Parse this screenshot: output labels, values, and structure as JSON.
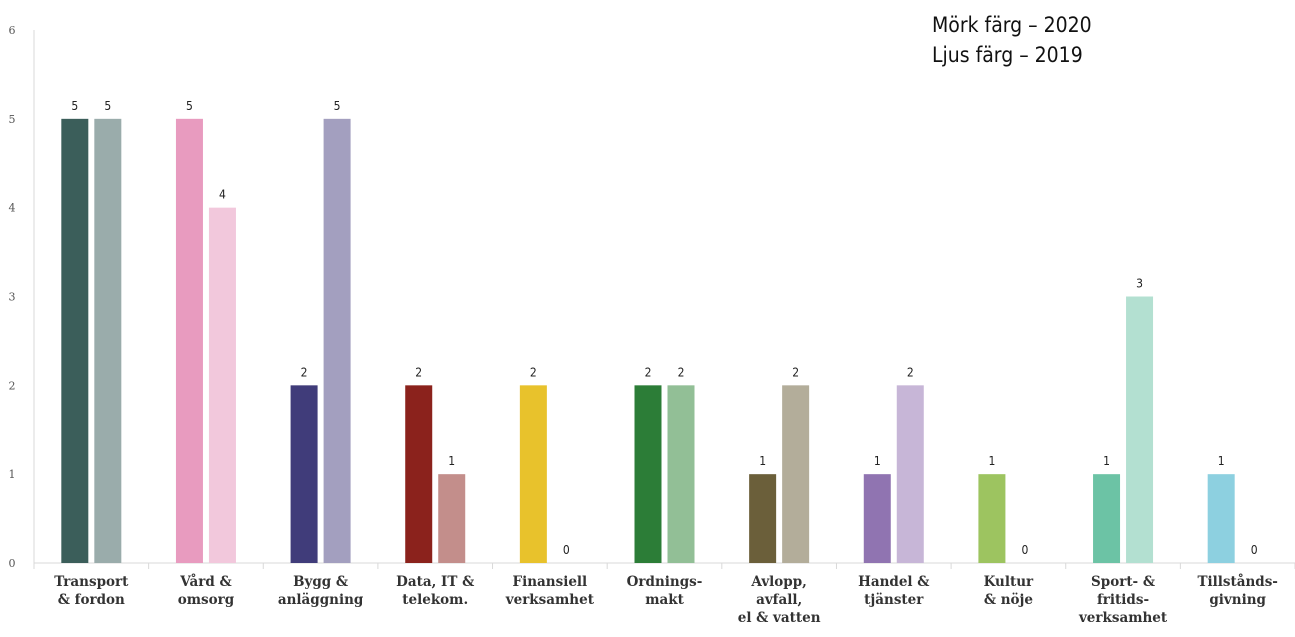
{
  "chart_data": {
    "type": "bar",
    "categories": [
      [
        "Transport",
        "& fordon"
      ],
      [
        "Vård &",
        "omsorg"
      ],
      [
        "Bygg &",
        "anläggning"
      ],
      [
        "Data, IT &",
        "telekom."
      ],
      [
        "Finansiell",
        "verksamhet"
      ],
      [
        "Ordnings-",
        "makt"
      ],
      [
        "Avlopp,",
        "avfall,",
        "el & vatten"
      ],
      [
        "Handel &",
        "tjänster"
      ],
      [
        "Kultur",
        "& nöje"
      ],
      [
        "Sport- &",
        "fritids-",
        "verksamhet"
      ],
      [
        "Tillstånds-",
        "givning"
      ]
    ],
    "series": [
      {
        "name": "Mörk färg – 2020",
        "values": [
          5,
          5,
          2,
          2,
          2,
          2,
          1,
          1,
          1,
          1,
          1
        ]
      },
      {
        "name": "Ljus färg – 2019",
        "values": [
          5,
          4,
          5,
          1,
          0,
          2,
          2,
          2,
          0,
          3,
          0
        ]
      }
    ],
    "colors_2020": [
      "#3b5e5a",
      "#e89bbf",
      "#403c7a",
      "#8b221c",
      "#e8c22c",
      "#2c7d37",
      "#6b5f3a",
      "#9074b1",
      "#9dc460",
      "#6cc3a5",
      "#8dd0e0"
    ],
    "colors_2019": [
      "#9aacab",
      "#f2c8dc",
      "#a39fbf",
      "#c38e8b",
      "#f3e1a0",
      "#92bf96",
      "#b3ad9a",
      "#c7b6d7",
      "#cee3b1",
      "#b3e0d1",
      "#c7e8f0"
    ],
    "yticks": [
      0,
      1,
      2,
      3,
      4,
      5,
      6
    ],
    "ylim": [
      0,
      6
    ],
    "legend": [
      "Mörk färg – 2020",
      "Ljus färg – 2019"
    ],
    "legend_position": "top-right",
    "grid": false
  }
}
